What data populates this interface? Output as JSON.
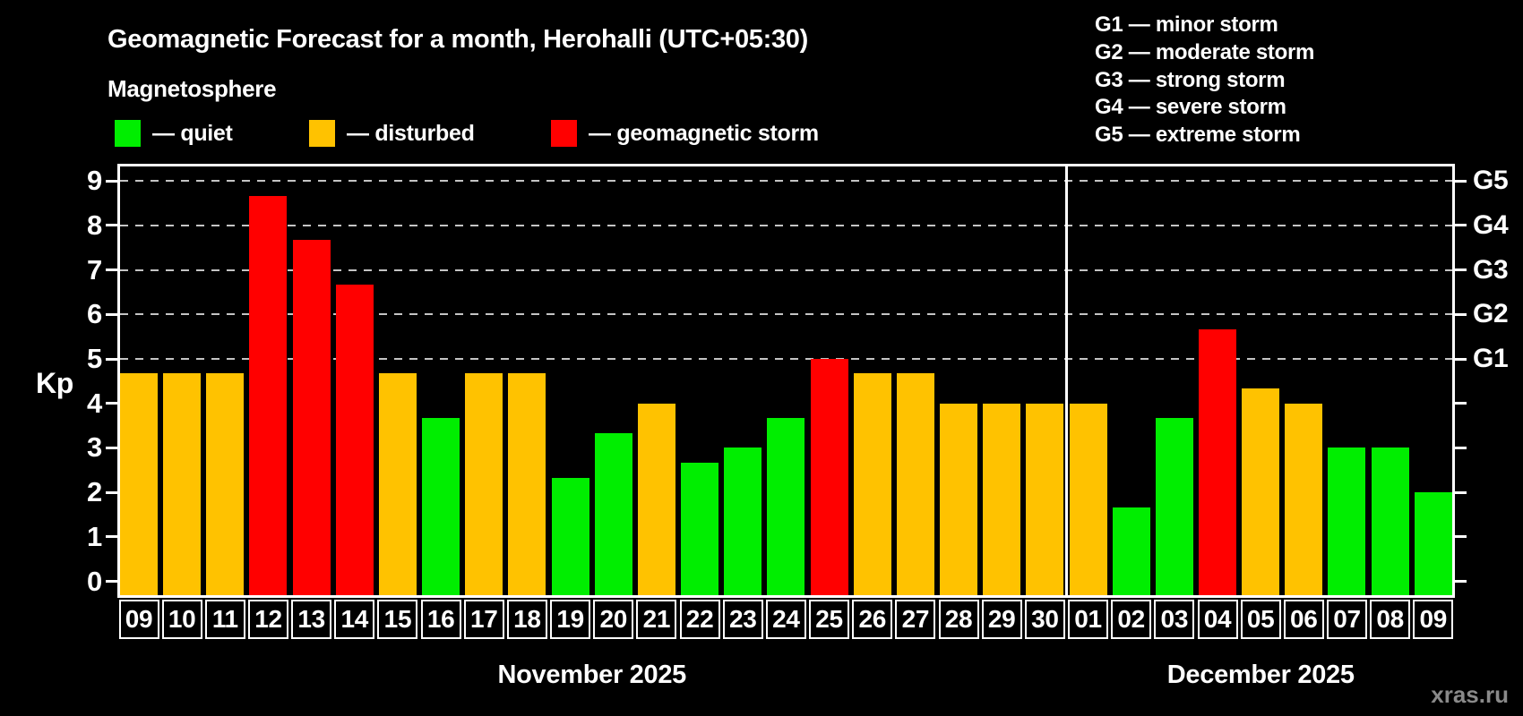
{
  "title": "Geomagnetic Forecast for a month, Herohalli (UTC+05:30)",
  "subtitle": "Magnetosphere",
  "legend": [
    {
      "key": "quiet",
      "label": "— quiet",
      "color": "#00ee00"
    },
    {
      "key": "disturbed",
      "label": "— disturbed",
      "color": "#ffc200"
    },
    {
      "key": "storm",
      "label": "— geomagnetic storm",
      "color": "#ff0000"
    }
  ],
  "g_scale_legend": [
    "G1 — minor storm",
    "G2 — moderate storm",
    "G3 — strong storm",
    "G4 — severe storm",
    "G5 — extreme storm"
  ],
  "kp_axis_label": "Kp",
  "watermark": "xras.ru",
  "chart_data": {
    "type": "bar",
    "ylabel": "Kp",
    "ylim": [
      0,
      9
    ],
    "yticks": [
      0,
      1,
      2,
      3,
      4,
      5,
      6,
      7,
      8,
      9
    ],
    "grid_values": [
      5,
      6,
      7,
      8,
      9
    ],
    "right_axis_labels": [
      {
        "value": 5,
        "label": "G1"
      },
      {
        "value": 6,
        "label": "G2"
      },
      {
        "value": 7,
        "label": "G3"
      },
      {
        "value": 8,
        "label": "G4"
      },
      {
        "value": 9,
        "label": "G5"
      }
    ],
    "series_colors": {
      "quiet": "#00ee00",
      "disturbed": "#ffc200",
      "storm": "#ff0000"
    },
    "months": [
      {
        "label": "November 2025",
        "days": [
          {
            "day": "09",
            "kp": 4.67,
            "status": "disturbed"
          },
          {
            "day": "10",
            "kp": 4.67,
            "status": "disturbed"
          },
          {
            "day": "11",
            "kp": 4.67,
            "status": "disturbed"
          },
          {
            "day": "12",
            "kp": 8.67,
            "status": "storm"
          },
          {
            "day": "13",
            "kp": 7.67,
            "status": "storm"
          },
          {
            "day": "14",
            "kp": 6.67,
            "status": "storm"
          },
          {
            "day": "15",
            "kp": 4.67,
            "status": "disturbed"
          },
          {
            "day": "16",
            "kp": 3.67,
            "status": "quiet"
          },
          {
            "day": "17",
            "kp": 4.67,
            "status": "disturbed"
          },
          {
            "day": "18",
            "kp": 4.67,
            "status": "disturbed"
          },
          {
            "day": "19",
            "kp": 2.33,
            "status": "quiet"
          },
          {
            "day": "20",
            "kp": 3.33,
            "status": "quiet"
          },
          {
            "day": "21",
            "kp": 4.0,
            "status": "disturbed"
          },
          {
            "day": "22",
            "kp": 2.67,
            "status": "quiet"
          },
          {
            "day": "23",
            "kp": 3.0,
            "status": "quiet"
          },
          {
            "day": "24",
            "kp": 3.67,
            "status": "quiet"
          },
          {
            "day": "25",
            "kp": 5.0,
            "status": "storm"
          },
          {
            "day": "26",
            "kp": 4.67,
            "status": "disturbed"
          },
          {
            "day": "27",
            "kp": 4.67,
            "status": "disturbed"
          },
          {
            "day": "28",
            "kp": 4.0,
            "status": "disturbed"
          },
          {
            "day": "29",
            "kp": 4.0,
            "status": "disturbed"
          },
          {
            "day": "30",
            "kp": 4.0,
            "status": "disturbed"
          }
        ]
      },
      {
        "label": "December 2025",
        "days": [
          {
            "day": "01",
            "kp": 4.0,
            "status": "disturbed"
          },
          {
            "day": "02",
            "kp": 1.67,
            "status": "quiet"
          },
          {
            "day": "03",
            "kp": 3.67,
            "status": "quiet"
          },
          {
            "day": "04",
            "kp": 5.67,
            "status": "storm"
          },
          {
            "day": "05",
            "kp": 4.33,
            "status": "disturbed"
          },
          {
            "day": "06",
            "kp": 4.0,
            "status": "disturbed"
          },
          {
            "day": "07",
            "kp": 3.0,
            "status": "quiet"
          },
          {
            "day": "08",
            "kp": 3.0,
            "status": "quiet"
          },
          {
            "day": "09",
            "kp": 2.0,
            "status": "quiet"
          }
        ]
      }
    ]
  }
}
